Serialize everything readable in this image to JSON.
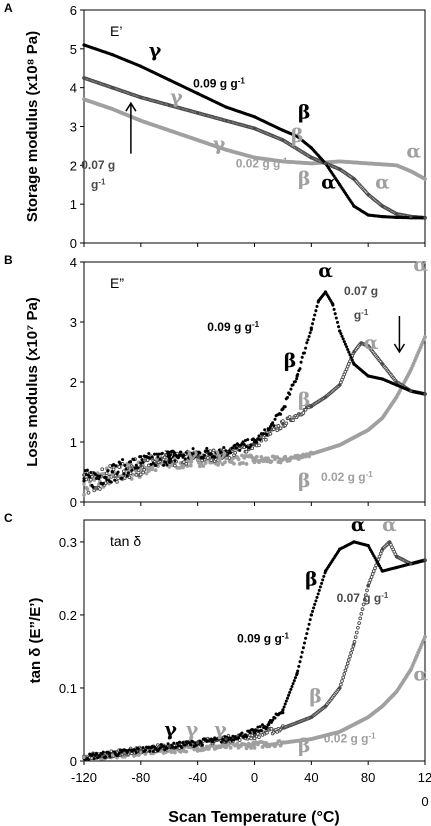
{
  "figure": {
    "x_axis_label": "Scan Temperature (°C)",
    "x_ticks": [
      "-120",
      "-80",
      "-40",
      "0",
      "40",
      "80",
      "12"
    ],
    "x_tick_overflow": "0"
  },
  "colors": {
    "g009": "#000000",
    "g007": "#4a4a4a",
    "g002": "#a0a0a0",
    "axis": "#000000"
  },
  "chart_data": [
    {
      "type": "scatter",
      "panel": "A",
      "title": "E’",
      "ylabel": "Storage modulus (x10⁸ Pa)",
      "xlim": [
        -120,
        120
      ],
      "ylim": [
        0,
        6
      ],
      "yticks": [
        "0",
        "1",
        "2",
        "3",
        "4",
        "5",
        "6"
      ],
      "series": [
        {
          "name": "0.09 g g⁻¹",
          "x": [
            -120,
            -100,
            -80,
            -60,
            -40,
            -20,
            0,
            20,
            30,
            40,
            50,
            60,
            70,
            80,
            90,
            100,
            110,
            120
          ],
          "y": [
            5.1,
            4.85,
            4.55,
            4.2,
            3.85,
            3.5,
            3.25,
            2.9,
            2.75,
            2.45,
            2.05,
            1.5,
            0.95,
            0.72,
            0.68,
            0.66,
            0.65,
            0.65
          ]
        },
        {
          "name": "0.07 g g⁻¹",
          "x": [
            -120,
            -100,
            -80,
            -60,
            -40,
            -20,
            0,
            20,
            40,
            50,
            60,
            70,
            80,
            90,
            100,
            110,
            120
          ],
          "y": [
            4.25,
            4.0,
            3.75,
            3.55,
            3.35,
            3.15,
            2.95,
            2.65,
            2.2,
            2.05,
            1.9,
            1.65,
            1.25,
            0.95,
            0.75,
            0.68,
            0.65
          ]
        },
        {
          "name": "0.02 g g⁻¹",
          "x": [
            -120,
            -100,
            -80,
            -60,
            -40,
            -20,
            0,
            20,
            40,
            60,
            80,
            100,
            110,
            120
          ],
          "y": [
            3.7,
            3.45,
            3.15,
            2.9,
            2.65,
            2.4,
            2.2,
            2.1,
            2.05,
            2.1,
            2.05,
            2.0,
            1.85,
            1.65
          ]
        }
      ],
      "annotations": [
        {
          "text": "γ",
          "x": -70,
          "y": 4.8,
          "color": "#000000",
          "greek": true
        },
        {
          "text": "0.09 g g",
          "sup": "-1",
          "x": -25,
          "y": 4.0,
          "color": "#000000",
          "greek": false
        },
        {
          "text": "β",
          "x": 35,
          "y": 3.2,
          "color": "#000000",
          "greek": true
        },
        {
          "text": "γ",
          "x": -55,
          "y": 3.6,
          "color": "#a0a0a0",
          "greek": true
        },
        {
          "text": "β",
          "x": 30,
          "y": 2.6,
          "color": "#a0a0a0",
          "greek": true
        },
        {
          "text": "γ",
          "x": -25,
          "y": 2.4,
          "color": "#a0a0a0",
          "greek": true
        },
        {
          "text": "0.02 g g",
          "sup": "-1",
          "x": 5,
          "y": 1.95,
          "color": "#a0a0a0",
          "greek": false
        },
        {
          "text": "β",
          "x": 35,
          "y": 1.5,
          "color": "#a0a0a0",
          "greek": true
        },
        {
          "text": "α",
          "x": 52,
          "y": 1.4,
          "color": "#000000",
          "greek": true
        },
        {
          "text": "α",
          "x": 90,
          "y": 1.4,
          "color": "#a0a0a0",
          "greek": true
        },
        {
          "text": "α",
          "x": 112,
          "y": 2.2,
          "color": "#a0a0a0",
          "greek": true
        },
        {
          "text": "0.07 g",
          "x": -110,
          "y": 1.9,
          "color": "#4a4a4a",
          "greek": false
        },
        {
          "text": "g",
          "sup": "-1",
          "x": -110,
          "y": 1.4,
          "color": "#4a4a4a",
          "greek": false
        }
      ],
      "arrow": {
        "from": [
          -87,
          2.3
        ],
        "to": [
          -87,
          3.6
        ]
      }
    },
    {
      "type": "scatter",
      "panel": "B",
      "title": "E”",
      "ylabel": "Loss modulus (x10⁷ Pa)",
      "xlim": [
        -120,
        120
      ],
      "ylim": [
        0,
        4
      ],
      "yticks": [
        "0",
        "1",
        "2",
        "3",
        "4"
      ],
      "series": [
        {
          "name": "0.09 g g⁻¹",
          "x": [
            -120,
            -100,
            -80,
            -60,
            -40,
            -20,
            0,
            10,
            20,
            30,
            40,
            45,
            50,
            55,
            60,
            70,
            80,
            90,
            100,
            110,
            120
          ],
          "y": [
            0.35,
            0.5,
            0.65,
            0.75,
            0.8,
            0.85,
            1.0,
            1.2,
            1.55,
            2.1,
            2.9,
            3.35,
            3.5,
            3.3,
            2.85,
            2.3,
            2.1,
            2.05,
            1.95,
            1.85,
            1.8
          ]
        },
        {
          "name": "0.07 g g⁻¹",
          "x": [
            -120,
            -100,
            -80,
            -60,
            -40,
            -20,
            0,
            20,
            40,
            50,
            60,
            70,
            75,
            80,
            90,
            100,
            110,
            120
          ],
          "y": [
            0.3,
            0.45,
            0.6,
            0.7,
            0.75,
            0.8,
            0.95,
            1.3,
            1.6,
            1.75,
            1.95,
            2.5,
            2.65,
            2.6,
            2.3,
            2.0,
            1.85,
            1.8
          ]
        },
        {
          "name": "0.02 g g⁻¹",
          "x": [
            -120,
            -100,
            -80,
            -60,
            -40,
            -20,
            0,
            20,
            40,
            60,
            80,
            90,
            100,
            110,
            120
          ],
          "y": [
            0.3,
            0.45,
            0.55,
            0.65,
            0.7,
            0.72,
            0.7,
            0.7,
            0.8,
            0.95,
            1.2,
            1.4,
            1.75,
            2.2,
            2.75
          ]
        }
      ],
      "annotations": [
        {
          "text": "α",
          "x": 50,
          "y": 3.75,
          "color": "#000000",
          "greek": true
        },
        {
          "text": "0.07 g",
          "x": 75,
          "y": 3.45,
          "color": "#4a4a4a",
          "greek": false
        },
        {
          "text": "g",
          "sup": "-1",
          "x": 75,
          "y": 3.05,
          "color": "#4a4a4a",
          "greek": false
        },
        {
          "text": "0.09 g g",
          "sup": "-1",
          "x": -15,
          "y": 2.85,
          "color": "#000000",
          "greek": false
        },
        {
          "text": "α",
          "x": 82,
          "y": 2.55,
          "color": "#a0a0a0",
          "greek": true
        },
        {
          "text": "α",
          "x": 117,
          "y": 3.85,
          "color": "#a0a0a0",
          "greek": true
        },
        {
          "text": "β",
          "x": 25,
          "y": 2.25,
          "color": "#000000",
          "greek": true
        },
        {
          "text": "β",
          "x": 35,
          "y": 1.6,
          "color": "#a0a0a0",
          "greek": true
        },
        {
          "text": "γ",
          "x": -59,
          "y": 0.7,
          "color": "#000000",
          "greek": true
        },
        {
          "text": "γ",
          "x": -44,
          "y": 0.7,
          "color": "#a0a0a0",
          "greek": true
        },
        {
          "text": "γ",
          "x": -24,
          "y": 0.7,
          "color": "#a0a0a0",
          "greek": true
        },
        {
          "text": "β",
          "x": 35,
          "y": 0.25,
          "color": "#a0a0a0",
          "greek": true
        },
        {
          "text": "0.02 g g",
          "sup": "-1",
          "x": 65,
          "y": 0.35,
          "color": "#a0a0a0",
          "greek": false
        }
      ],
      "arrow": {
        "from": [
          102,
          3.1
        ],
        "to": [
          102,
          2.5
        ]
      }
    },
    {
      "type": "scatter",
      "panel": "C",
      "title": "tan δ",
      "ylabel": "tan δ (E”/E’)",
      "xlim": [
        -120,
        120
      ],
      "ylim": [
        0,
        0.33
      ],
      "yticks": [
        "0",
        "0.1",
        "0.2",
        "0.3"
      ],
      "ytick_values": [
        0,
        0.1,
        0.2,
        0.3
      ],
      "series": [
        {
          "name": "0.09 g g⁻¹",
          "x": [
            -120,
            -100,
            -80,
            -60,
            -40,
            -20,
            0,
            10,
            20,
            30,
            40,
            50,
            60,
            70,
            80,
            90,
            100,
            110,
            120
          ],
          "y": [
            0.005,
            0.01,
            0.015,
            0.02,
            0.025,
            0.03,
            0.04,
            0.05,
            0.07,
            0.12,
            0.2,
            0.26,
            0.29,
            0.3,
            0.295,
            0.26,
            0.265,
            0.27,
            0.275
          ]
        },
        {
          "name": "0.07 g g⁻¹",
          "x": [
            -120,
            -100,
            -80,
            -60,
            -40,
            -20,
            0,
            20,
            40,
            50,
            60,
            70,
            80,
            90,
            95,
            100,
            110,
            120
          ],
          "y": [
            0.005,
            0.01,
            0.015,
            0.02,
            0.025,
            0.03,
            0.035,
            0.045,
            0.06,
            0.075,
            0.1,
            0.16,
            0.24,
            0.29,
            0.3,
            0.28,
            0.27,
            0.275
          ]
        },
        {
          "name": "0.02 g g⁻¹",
          "x": [
            -120,
            -100,
            -80,
            -60,
            -40,
            -20,
            0,
            20,
            40,
            60,
            80,
            90,
            100,
            110,
            120
          ],
          "y": [
            0.005,
            0.008,
            0.012,
            0.015,
            0.018,
            0.02,
            0.022,
            0.025,
            0.03,
            0.04,
            0.06,
            0.075,
            0.095,
            0.125,
            0.17
          ]
        }
      ],
      "annotations": [
        {
          "text": "α",
          "x": 73,
          "y": 0.315,
          "color": "#000000",
          "greek": true
        },
        {
          "text": "α",
          "x": 95,
          "y": 0.315,
          "color": "#a0a0a0",
          "greek": true
        },
        {
          "text": "β",
          "x": 40,
          "y": 0.24,
          "color": "#000000",
          "greek": true
        },
        {
          "text": "0.07 g g",
          "sup": "-1",
          "x": 76,
          "y": 0.218,
          "color": "#4a4a4a",
          "greek": false
        },
        {
          "text": "0.09 g g",
          "sup": "-1",
          "x": 6,
          "y": 0.162,
          "color": "#000000",
          "greek": false
        },
        {
          "text": "β",
          "x": 43,
          "y": 0.08,
          "color": "#a0a0a0",
          "greek": true
        },
        {
          "text": "α",
          "x": 117,
          "y": 0.11,
          "color": "#a0a0a0",
          "greek": true
        },
        {
          "text": "γ",
          "x": -59,
          "y": 0.035,
          "color": "#000000",
          "greek": true
        },
        {
          "text": "γ",
          "x": -44,
          "y": 0.035,
          "color": "#a0a0a0",
          "greek": true
        },
        {
          "text": "γ",
          "x": -24,
          "y": 0.035,
          "color": "#a0a0a0",
          "greek": true
        },
        {
          "text": "β",
          "x": 35,
          "y": 0.012,
          "color": "#a0a0a0",
          "greek": true
        },
        {
          "text": "0.02 g g",
          "sup": "-1",
          "x": 67,
          "y": 0.025,
          "color": "#a0a0a0",
          "greek": false
        }
      ]
    }
  ]
}
